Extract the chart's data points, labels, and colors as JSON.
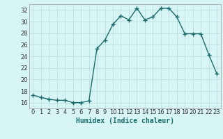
{
  "x": [
    0,
    1,
    2,
    3,
    4,
    5,
    6,
    7,
    8,
    9,
    10,
    11,
    12,
    13,
    14,
    15,
    16,
    17,
    18,
    19,
    20,
    21,
    22,
    23
  ],
  "y": [
    17.3,
    16.9,
    16.6,
    16.4,
    16.4,
    16.0,
    16.0,
    16.3,
    25.3,
    26.8,
    29.5,
    31.0,
    30.3,
    32.3,
    30.3,
    30.8,
    32.3,
    32.3,
    30.8,
    27.9,
    27.9,
    27.9,
    24.3,
    21.0
  ],
  "line_color": "#1a6b6b",
  "marker": "+",
  "markersize": 4,
  "linewidth": 1.0,
  "bg_color": "#d8f5f5",
  "grid_color": "#b8dada",
  "xlabel": "Humidex (Indice chaleur)",
  "xlabel_fontsize": 7,
  "tick_fontsize": 6,
  "xlim": [
    -0.5,
    23.5
  ],
  "ylim": [
    15,
    33
  ],
  "yticks": [
    16,
    18,
    20,
    22,
    24,
    26,
    28,
    30,
    32
  ],
  "xticks": [
    0,
    1,
    2,
    3,
    4,
    5,
    6,
    7,
    8,
    9,
    10,
    11,
    12,
    13,
    14,
    15,
    16,
    17,
    18,
    19,
    20,
    21,
    22,
    23
  ]
}
